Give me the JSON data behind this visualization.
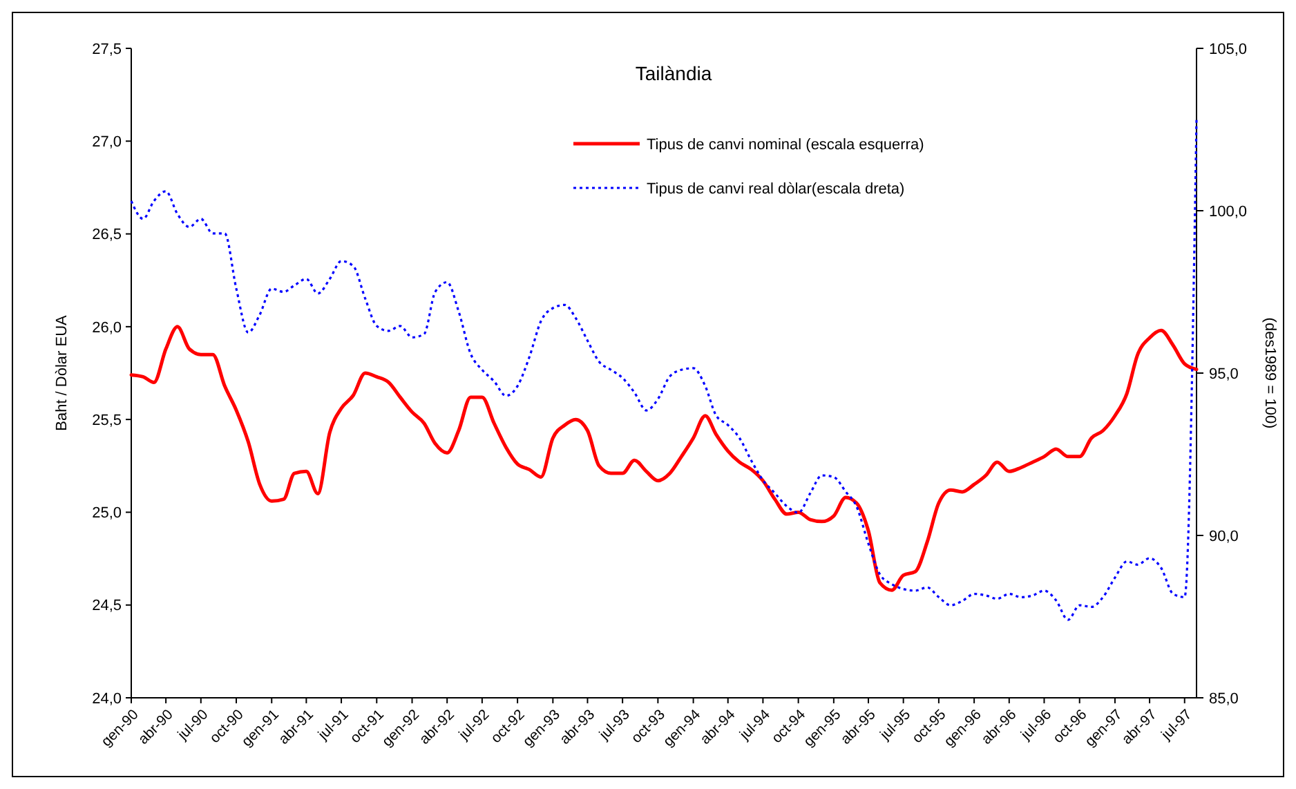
{
  "chart_data": {
    "type": "line",
    "title": "Tailàndia",
    "ylabel": "Baht / Dòlar EUA",
    "y2label": "(des1989 = 100)",
    "legend": "top",
    "x": [
      "1990-01",
      "1990-02",
      "1990-03",
      "1990-04",
      "1990-05",
      "1990-06",
      "1990-07",
      "1990-08",
      "1990-09",
      "1990-10",
      "1990-11",
      "1990-12",
      "1991-01",
      "1991-02",
      "1991-03",
      "1991-04",
      "1991-05",
      "1991-06",
      "1991-07",
      "1991-08",
      "1991-09",
      "1991-10",
      "1991-11",
      "1991-12",
      "1992-01",
      "1992-02",
      "1992-03",
      "1992-04",
      "1992-05",
      "1992-06",
      "1992-07",
      "1992-08",
      "1992-09",
      "1992-10",
      "1992-11",
      "1992-12",
      "1993-01",
      "1993-02",
      "1993-03",
      "1993-04",
      "1993-05",
      "1993-06",
      "1993-07",
      "1993-08",
      "1993-09",
      "1993-10",
      "1993-11",
      "1993-12",
      "1994-01",
      "1994-02",
      "1994-03",
      "1994-04",
      "1994-05",
      "1994-06",
      "1994-07",
      "1994-08",
      "1994-09",
      "1994-10",
      "1994-11",
      "1994-12",
      "1995-01",
      "1995-02",
      "1995-03",
      "1995-04",
      "1995-05",
      "1995-06",
      "1995-07",
      "1995-08",
      "1995-09",
      "1995-10",
      "1995-11",
      "1995-12",
      "1996-01",
      "1996-02",
      "1996-03",
      "1996-04",
      "1996-05",
      "1996-06",
      "1996-07",
      "1996-08",
      "1996-09",
      "1996-10",
      "1996-11",
      "1996-12",
      "1997-01",
      "1997-02",
      "1997-03",
      "1997-04",
      "1997-05",
      "1997-06",
      "1997-07",
      "1997-08"
    ],
    "series": [
      {
        "name": "Tipus de canvi nominal (escala esquerra)",
        "color": "#ff0000",
        "line_style": "solid",
        "values": [
          25.74,
          25.73,
          25.7,
          25.88,
          26.0,
          25.88,
          25.85,
          25.85,
          25.68,
          25.55,
          25.38,
          25.15,
          25.06,
          25.07,
          25.21,
          25.22,
          25.1,
          25.43,
          25.56,
          25.63,
          25.75,
          25.73,
          25.7,
          25.62,
          25.54,
          25.48,
          25.37,
          25.32,
          25.44,
          25.62,
          25.62,
          25.48,
          25.35,
          25.26,
          25.23,
          25.19,
          25.4,
          25.47,
          25.5,
          25.44,
          25.25,
          25.21,
          25.21,
          25.28,
          25.22,
          25.17,
          25.21,
          25.3,
          25.4,
          25.52,
          25.42,
          25.33,
          25.27,
          25.23,
          25.17,
          25.07,
          24.99,
          25.0,
          24.96,
          24.95,
          24.98,
          25.08,
          25.05,
          24.9,
          24.62,
          24.58,
          24.66,
          24.68,
          24.84,
          25.05,
          25.12,
          25.11,
          25.15,
          25.2,
          25.27,
          25.22,
          25.24,
          25.27,
          25.3,
          25.34,
          25.3,
          25.3,
          25.4,
          25.44,
          25.52,
          25.64,
          25.85,
          25.94,
          25.98,
          25.9,
          25.8,
          25.77
        ]
      },
      {
        "name": "Tipus de canvi real dòlar(escala dreta)",
        "color": "#0000ff",
        "line_style": "dotted",
        "axis": "y2",
        "values": [
          100.3,
          99.75,
          100.3,
          100.6,
          99.9,
          99.5,
          99.75,
          99.3,
          99.3,
          97.6,
          96.25,
          96.8,
          97.6,
          97.5,
          97.7,
          97.9,
          97.45,
          97.9,
          98.45,
          98.3,
          97.3,
          96.45,
          96.3,
          96.45,
          96.1,
          96.2,
          97.5,
          97.8,
          96.9,
          95.6,
          95.1,
          94.75,
          94.3,
          94.6,
          95.5,
          96.6,
          97.0,
          97.1,
          96.7,
          96.0,
          95.35,
          95.1,
          94.85,
          94.4,
          93.85,
          94.2,
          94.9,
          95.1,
          95.15,
          94.6,
          93.7,
          93.4,
          93.0,
          92.3,
          91.7,
          91.3,
          90.9,
          90.7,
          91.3,
          91.85,
          91.8,
          91.35,
          90.9,
          89.75,
          88.8,
          88.5,
          88.35,
          88.3,
          88.4,
          88.1,
          87.85,
          87.98,
          88.2,
          88.15,
          88.05,
          88.2,
          88.1,
          88.15,
          88.3,
          88.0,
          87.4,
          87.85,
          87.8,
          88.1,
          88.7,
          89.2,
          89.1,
          89.3,
          89.0,
          88.2,
          88.1,
          102.8
        ]
      }
    ],
    "xlim": [
      "1990-01",
      "1997-08"
    ],
    "xticks": [
      {
        "value": "1990-01",
        "label": "gen-90"
      },
      {
        "value": "1990-04",
        "label": "abr-90"
      },
      {
        "value": "1990-07",
        "label": "jul-90"
      },
      {
        "value": "1990-10",
        "label": "oct-90"
      },
      {
        "value": "1991-01",
        "label": "gen-91"
      },
      {
        "value": "1991-04",
        "label": "abr-91"
      },
      {
        "value": "1991-07",
        "label": "jul-91"
      },
      {
        "value": "1991-10",
        "label": "oct-91"
      },
      {
        "value": "1992-01",
        "label": "gen-92"
      },
      {
        "value": "1992-04",
        "label": "abr-92"
      },
      {
        "value": "1992-07",
        "label": "jul-92"
      },
      {
        "value": "1992-10",
        "label": "oct-92"
      },
      {
        "value": "1993-01",
        "label": "gen-93"
      },
      {
        "value": "1993-04",
        "label": "abr-93"
      },
      {
        "value": "1993-07",
        "label": "jul-93"
      },
      {
        "value": "1993-10",
        "label": "oct-93"
      },
      {
        "value": "1994-01",
        "label": "gen-94"
      },
      {
        "value": "1994-04",
        "label": "abr-94"
      },
      {
        "value": "1994-07",
        "label": "jul-94"
      },
      {
        "value": "1994-10",
        "label": "oct-94"
      },
      {
        "value": "1995-01",
        "label": "gen-95"
      },
      {
        "value": "1995-04",
        "label": "abr-95"
      },
      {
        "value": "1995-07",
        "label": "jul-95"
      },
      {
        "value": "1995-10",
        "label": "oct-95"
      },
      {
        "value": "1996-01",
        "label": "gen-96"
      },
      {
        "value": "1996-04",
        "label": "abr-96"
      },
      {
        "value": "1996-07",
        "label": "jul-96"
      },
      {
        "value": "1996-10",
        "label": "oct-96"
      },
      {
        "value": "1997-01",
        "label": "gen-97"
      },
      {
        "value": "1997-04",
        "label": "abr-97"
      },
      {
        "value": "1997-07",
        "label": "jul-97"
      }
    ],
    "ylim": [
      24,
      27.5
    ],
    "yticks": [
      {
        "value": 24,
        "label": "24,0"
      },
      {
        "value": 24.5,
        "label": "24,5"
      },
      {
        "value": 25,
        "label": "25,0"
      },
      {
        "value": 25.5,
        "label": "25,5"
      },
      {
        "value": 26,
        "label": "26,0"
      },
      {
        "value": 26.5,
        "label": "26,5"
      },
      {
        "value": 27,
        "label": "27,0"
      },
      {
        "value": 27.5,
        "label": "27,5"
      }
    ],
    "y2lim": [
      85,
      105
    ],
    "y2ticks": [
      {
        "value": 85,
        "label": "85,0"
      },
      {
        "value": 90,
        "label": "90,0"
      },
      {
        "value": 95,
        "label": "95,0"
      },
      {
        "value": 100,
        "label": "100,0"
      },
      {
        "value": 105,
        "label": "105,0"
      }
    ]
  }
}
